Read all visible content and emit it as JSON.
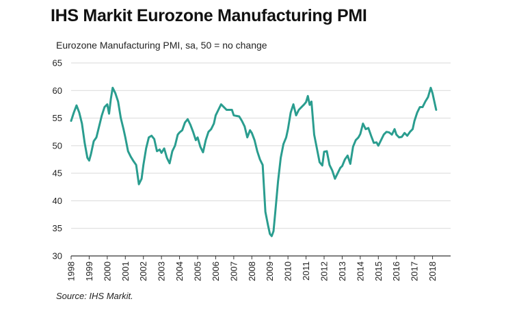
{
  "title": "IHS Markit Eurozone Manufacturing PMI",
  "source": "Source: IHS Markit.",
  "chart_data": {
    "type": "line",
    "title": "IHS Markit Eurozone Manufacturing PMI",
    "subtitle": "Eurozone Manufacturing PMI, sa, 50 = no change",
    "xlabel": "",
    "ylabel": "",
    "ylim": [
      30,
      65
    ],
    "xlim": [
      1998.0,
      2019.0
    ],
    "yticks": [
      30,
      35,
      40,
      45,
      50,
      55,
      60,
      65
    ],
    "xticks": [
      "1998",
      "1999",
      "2000",
      "2001",
      "2002",
      "2003",
      "2004",
      "2005",
      "2006",
      "2007",
      "2008",
      "2009",
      "2010",
      "2011",
      "2012",
      "2013",
      "2014",
      "2015",
      "2016",
      "2017",
      "2018"
    ],
    "grid": true,
    "legend": "none",
    "line_color": "#2a9d8f",
    "series": [
      {
        "name": "Eurozone Manufacturing PMI",
        "x": [
          1998.0,
          1998.15,
          1998.3,
          1998.45,
          1998.6,
          1998.75,
          1998.9,
          1999.0,
          1999.1,
          1999.25,
          1999.4,
          1999.55,
          1999.7,
          1999.85,
          2000.0,
          2000.1,
          2000.2,
          2000.3,
          2000.45,
          2000.6,
          2000.75,
          2000.9,
          2001.0,
          2001.15,
          2001.3,
          2001.45,
          2001.6,
          2001.75,
          2001.9,
          2002.0,
          2002.15,
          2002.3,
          2002.45,
          2002.6,
          2002.75,
          2002.9,
          2003.0,
          2003.15,
          2003.3,
          2003.45,
          2003.6,
          2003.75,
          2003.9,
          2004.0,
          2004.15,
          2004.3,
          2004.45,
          2004.6,
          2004.75,
          2004.9,
          2005.0,
          2005.15,
          2005.3,
          2005.45,
          2005.6,
          2005.75,
          2005.9,
          2006.0,
          2006.15,
          2006.3,
          2006.45,
          2006.6,
          2006.75,
          2006.9,
          2007.0,
          2007.15,
          2007.3,
          2007.45,
          2007.6,
          2007.75,
          2007.9,
          2008.0,
          2008.15,
          2008.3,
          2008.45,
          2008.6,
          2008.75,
          2008.9,
          2009.0,
          2009.1,
          2009.2,
          2009.3,
          2009.45,
          2009.6,
          2009.75,
          2009.9,
          2010.0,
          2010.15,
          2010.3,
          2010.45,
          2010.6,
          2010.75,
          2010.9,
          2011.0,
          2011.1,
          2011.2,
          2011.3,
          2011.45,
          2011.6,
          2011.75,
          2011.9,
          2012.0,
          2012.15,
          2012.3,
          2012.45,
          2012.6,
          2012.75,
          2012.9,
          2013.0,
          2013.15,
          2013.3,
          2013.45,
          2013.6,
          2013.75,
          2013.9,
          2014.0,
          2014.15,
          2014.3,
          2014.45,
          2014.6,
          2014.75,
          2014.9,
          2015.0,
          2015.15,
          2015.3,
          2015.45,
          2015.6,
          2015.75,
          2015.9,
          2016.0,
          2016.15,
          2016.3,
          2016.45,
          2016.6,
          2016.75,
          2016.9,
          2017.0,
          2017.15,
          2017.3,
          2017.45,
          2017.6,
          2017.75,
          2017.9,
          2018.0,
          2018.1,
          2018.2
        ],
        "values": [
          54.5,
          56.0,
          57.3,
          56.0,
          54.0,
          50.5,
          47.8,
          47.3,
          48.5,
          50.8,
          51.5,
          53.5,
          55.5,
          57.0,
          57.5,
          55.8,
          58.5,
          60.5,
          59.5,
          58.0,
          55.0,
          53.0,
          51.5,
          49.0,
          48.0,
          47.2,
          46.5,
          43.0,
          44.0,
          46.5,
          49.5,
          51.5,
          51.8,
          51.2,
          49.0,
          49.3,
          48.7,
          49.5,
          47.8,
          46.8,
          49.0,
          50.0,
          52.0,
          52.4,
          52.8,
          54.2,
          54.8,
          53.8,
          52.5,
          51.0,
          51.5,
          49.8,
          48.8,
          51.0,
          52.5,
          53.0,
          54.0,
          55.5,
          56.5,
          57.5,
          57.0,
          56.5,
          56.5,
          56.5,
          55.5,
          55.4,
          55.3,
          54.5,
          53.5,
          51.5,
          52.8,
          52.3,
          51.0,
          49.0,
          47.5,
          46.5,
          38.0,
          35.5,
          34.0,
          33.6,
          34.5,
          38.0,
          43.5,
          47.8,
          50.3,
          51.5,
          53.0,
          56.0,
          57.5,
          55.5,
          56.5,
          57.0,
          57.5,
          57.9,
          59.0,
          57.4,
          58.0,
          52.0,
          49.5,
          47.0,
          46.4,
          48.9,
          49.0,
          46.5,
          45.5,
          44.0,
          45.0,
          46.0,
          46.3,
          47.5,
          48.2,
          46.7,
          49.8,
          51.0,
          51.5,
          52.1,
          54.0,
          53.0,
          53.2,
          51.8,
          50.5,
          50.6,
          50.0,
          51.0,
          52.0,
          52.5,
          52.4,
          52.0,
          53.0,
          52.0,
          51.5,
          51.6,
          52.3,
          51.8,
          52.5,
          53.0,
          54.5,
          56.0,
          57.0,
          57.0,
          58.0,
          58.8,
          60.5,
          59.5,
          58.0,
          56.5
        ]
      }
    ]
  }
}
